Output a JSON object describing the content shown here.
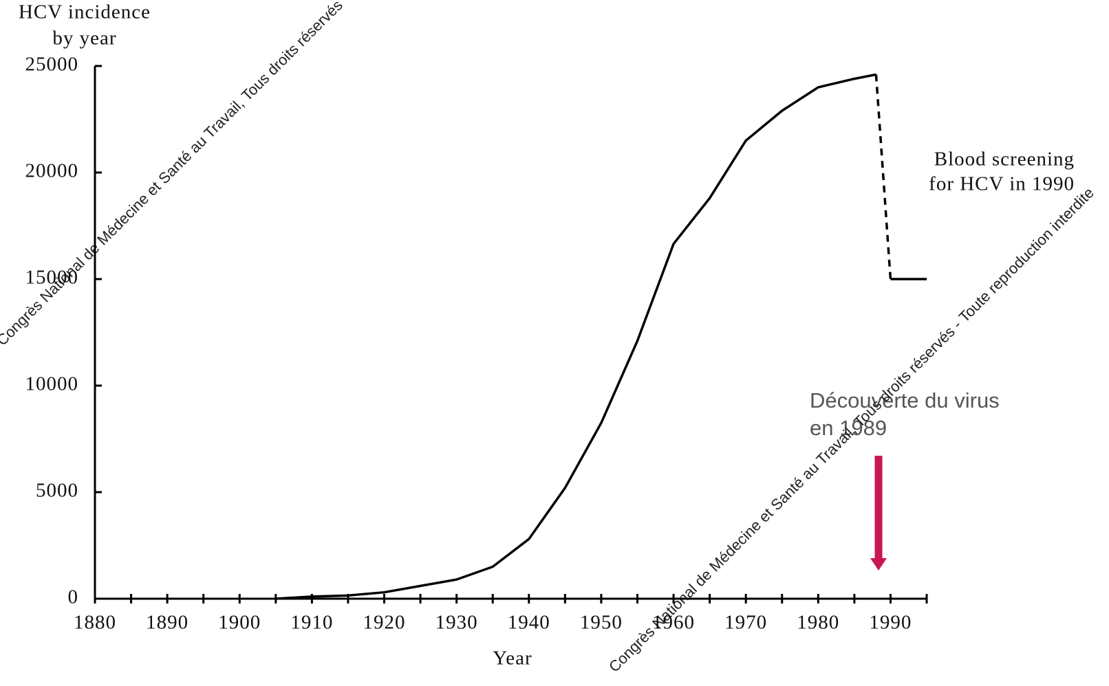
{
  "chart_data": {
    "type": "line",
    "y_label": [
      "HCV incidence",
      "by year"
    ],
    "x_label": "Year",
    "x": [
      1905,
      1910,
      1915,
      1920,
      1925,
      1930,
      1935,
      1940,
      1945,
      1950,
      1955,
      1960,
      1965,
      1970,
      1975,
      1980,
      1985,
      1988,
      1989,
      1990,
      1995
    ],
    "series": [
      {
        "color": "#000000",
        "style": "solid",
        "values": [
          0,
          100,
          150,
          300,
          600,
          900,
          1500,
          2800,
          5200,
          8250,
          12100,
          16650,
          18800,
          21500,
          22900,
          24000,
          24400,
          24600,
          null,
          15000,
          15000
        ]
      },
      {
        "color": "#000000",
        "style": "dashed",
        "values": [
          null,
          null,
          null,
          null,
          null,
          null,
          null,
          null,
          null,
          null,
          null,
          null,
          null,
          null,
          null,
          null,
          null,
          24600,
          19800,
          15000,
          null
        ]
      }
    ],
    "xlim": [
      1880,
      1995
    ],
    "xticks": [
      1880,
      1890,
      1900,
      1910,
      1920,
      1930,
      1940,
      1950,
      1960,
      1970,
      1980,
      1990
    ],
    "xticks_minor": [
      1885,
      1895,
      1905,
      1915,
      1925,
      1935,
      1945,
      1955,
      1965,
      1975,
      1985,
      1995
    ],
    "ylim": [
      0,
      25000
    ],
    "yticks": [
      0,
      5000,
      10000,
      15000,
      20000,
      25000
    ],
    "annotations": [
      {
        "lines": [
          "Blood screening",
          "for HCV in 1990"
        ]
      },
      {
        "lines": [
          "Découverte du virus",
          "en 1989"
        ]
      }
    ],
    "watermarks": [
      "Congrès National de Médecine et Santé au Travail, Tous droits réservés - Toute reproduction interdite",
      "Congrès National de Médecine et Santé au Travail, Tous droits réservés - Toute reproduction interdite"
    ]
  }
}
